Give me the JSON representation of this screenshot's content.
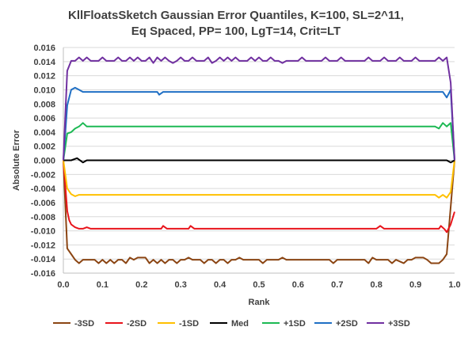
{
  "chart_data": {
    "type": "line",
    "title_lines": [
      "KllFloatsSketch Gaussian Error Quantiles, K=100, SL=2^11,",
      "Eq Spaced, PP= 100, LgT=14, Crit=LT"
    ],
    "xlabel": "Rank",
    "ylabel": "Absolute Error",
    "xlim": [
      0,
      1
    ],
    "ylim": [
      -0.016,
      0.016
    ],
    "x_ticks": [
      "0.0",
      "0.1",
      "0.2",
      "0.3",
      "0.4",
      "0.5",
      "0.6",
      "0.7",
      "0.8",
      "0.9",
      "1.0"
    ],
    "y_ticks": [
      "-0.016",
      "-0.014",
      "-0.012",
      "-0.010",
      "-0.008",
      "-0.006",
      "-0.004",
      "-0.002",
      "0.000",
      "0.002",
      "0.004",
      "0.006",
      "0.008",
      "0.010",
      "0.012",
      "0.014",
      "0.016"
    ],
    "grid": "horizontal",
    "legend": "bottom",
    "series": [
      {
        "name": "-3SD",
        "color": "#8B4513",
        "points": [
          [
            0,
            0
          ],
          [
            0.01,
            -0.0125
          ],
          [
            0.02,
            -0.0133
          ],
          [
            0.03,
            -0.0141
          ],
          [
            0.04,
            -0.0146
          ],
          [
            0.05,
            -0.0141
          ],
          [
            0.07,
            -0.0141
          ],
          [
            0.08,
            -0.0141
          ],
          [
            0.09,
            -0.0146
          ],
          [
            0.1,
            -0.0141
          ],
          [
            0.11,
            -0.0146
          ],
          [
            0.12,
            -0.0141
          ],
          [
            0.13,
            -0.0146
          ],
          [
            0.14,
            -0.0141
          ],
          [
            0.15,
            -0.0141
          ],
          [
            0.16,
            -0.0146
          ],
          [
            0.17,
            -0.0138
          ],
          [
            0.18,
            -0.0141
          ],
          [
            0.19,
            -0.0138
          ],
          [
            0.21,
            -0.0138
          ],
          [
            0.22,
            -0.0146
          ],
          [
            0.23,
            -0.0141
          ],
          [
            0.24,
            -0.0146
          ],
          [
            0.25,
            -0.0141
          ],
          [
            0.26,
            -0.0146
          ],
          [
            0.27,
            -0.0141
          ],
          [
            0.28,
            -0.0141
          ],
          [
            0.29,
            -0.0146
          ],
          [
            0.3,
            -0.0141
          ],
          [
            0.31,
            -0.0141
          ],
          [
            0.32,
            -0.0138
          ],
          [
            0.33,
            -0.0141
          ],
          [
            0.35,
            -0.0141
          ],
          [
            0.36,
            -0.0146
          ],
          [
            0.37,
            -0.0141
          ],
          [
            0.38,
            -0.0141
          ],
          [
            0.39,
            -0.0146
          ],
          [
            0.4,
            -0.0141
          ],
          [
            0.41,
            -0.0141
          ],
          [
            0.42,
            -0.0146
          ],
          [
            0.43,
            -0.0141
          ],
          [
            0.44,
            -0.0141
          ],
          [
            0.45,
            -0.0138
          ],
          [
            0.46,
            -0.0141
          ],
          [
            0.5,
            -0.0141
          ],
          [
            0.51,
            -0.0146
          ],
          [
            0.52,
            -0.0141
          ],
          [
            0.55,
            -0.0141
          ],
          [
            0.56,
            -0.0138
          ],
          [
            0.57,
            -0.0141
          ],
          [
            0.68,
            -0.0141
          ],
          [
            0.69,
            -0.0146
          ],
          [
            0.7,
            -0.0141
          ],
          [
            0.77,
            -0.0141
          ],
          [
            0.78,
            -0.0146
          ],
          [
            0.79,
            -0.0138
          ],
          [
            0.8,
            -0.0141
          ],
          [
            0.83,
            -0.0141
          ],
          [
            0.84,
            -0.0146
          ],
          [
            0.85,
            -0.0141
          ],
          [
            0.87,
            -0.0146
          ],
          [
            0.88,
            -0.0141
          ],
          [
            0.89,
            -0.0141
          ],
          [
            0.9,
            -0.0138
          ],
          [
            0.92,
            -0.0138
          ],
          [
            0.93,
            -0.0141
          ],
          [
            0.94,
            -0.0146
          ],
          [
            0.96,
            -0.0146
          ],
          [
            0.97,
            -0.0141
          ],
          [
            0.98,
            -0.0133
          ],
          [
            1.0,
            0
          ]
        ]
      },
      {
        "name": "-2SD",
        "color": "#E8141B",
        "points": [
          [
            0,
            0
          ],
          [
            0.01,
            -0.0072
          ],
          [
            0.015,
            -0.0085
          ],
          [
            0.02,
            -0.0091
          ],
          [
            0.03,
            -0.0095
          ],
          [
            0.04,
            -0.0097
          ],
          [
            0.05,
            -0.0097
          ],
          [
            0.06,
            -0.0095
          ],
          [
            0.07,
            -0.0097
          ],
          [
            0.25,
            -0.0097
          ],
          [
            0.255,
            -0.0093
          ],
          [
            0.265,
            -0.0097
          ],
          [
            0.32,
            -0.0097
          ],
          [
            0.325,
            -0.0093
          ],
          [
            0.335,
            -0.0097
          ],
          [
            0.8,
            -0.0097
          ],
          [
            0.81,
            -0.0093
          ],
          [
            0.82,
            -0.0097
          ],
          [
            0.96,
            -0.0097
          ],
          [
            0.965,
            -0.0093
          ],
          [
            0.975,
            -0.0098
          ],
          [
            0.98,
            -0.0102
          ],
          [
            0.99,
            -0.0091
          ],
          [
            1.0,
            -0.0073
          ]
        ]
      },
      {
        "name": "-1SD",
        "color": "#FFC000",
        "points": [
          [
            0,
            0
          ],
          [
            0.01,
            -0.004
          ],
          [
            0.02,
            -0.0048
          ],
          [
            0.03,
            -0.0051
          ],
          [
            0.04,
            -0.0049
          ],
          [
            0.05,
            -0.0049
          ],
          [
            0.95,
            -0.0049
          ],
          [
            0.96,
            -0.0053
          ],
          [
            0.97,
            -0.0049
          ],
          [
            0.98,
            -0.0053
          ],
          [
            0.99,
            -0.0045
          ],
          [
            1.0,
            0
          ]
        ]
      },
      {
        "name": "Med",
        "color": "#000000",
        "points": [
          [
            0,
            0
          ],
          [
            0.02,
            0
          ],
          [
            0.035,
            0.0003
          ],
          [
            0.05,
            -0.0003
          ],
          [
            0.06,
            0
          ],
          [
            0.98,
            0
          ],
          [
            0.99,
            -0.0003
          ],
          [
            1.0,
            0
          ]
        ]
      },
      {
        "name": "+1SD",
        "color": "#1DB954",
        "points": [
          [
            0,
            0
          ],
          [
            0.01,
            0.0038
          ],
          [
            0.02,
            0.004
          ],
          [
            0.03,
            0.0045
          ],
          [
            0.04,
            0.0048
          ],
          [
            0.05,
            0.0053
          ],
          [
            0.06,
            0.0048
          ],
          [
            0.95,
            0.0048
          ],
          [
            0.96,
            0.0045
          ],
          [
            0.97,
            0.0053
          ],
          [
            0.98,
            0.0048
          ],
          [
            0.99,
            0.0053
          ],
          [
            1.0,
            0
          ]
        ]
      },
      {
        "name": "+2SD",
        "color": "#1F6FC4",
        "points": [
          [
            0,
            0
          ],
          [
            0.01,
            0.0078
          ],
          [
            0.02,
            0.01
          ],
          [
            0.03,
            0.0103
          ],
          [
            0.04,
            0.01
          ],
          [
            0.05,
            0.0097
          ],
          [
            0.24,
            0.0097
          ],
          [
            0.245,
            0.0093
          ],
          [
            0.255,
            0.0097
          ],
          [
            0.97,
            0.0097
          ],
          [
            0.98,
            0.0089
          ],
          [
            0.99,
            0.01
          ],
          [
            1.0,
            0
          ]
        ]
      },
      {
        "name": "+3SD",
        "color": "#7030A0",
        "points": [
          [
            0,
            0
          ],
          [
            0.01,
            0.0127
          ],
          [
            0.02,
            0.0141
          ],
          [
            0.03,
            0.0141
          ],
          [
            0.04,
            0.0146
          ],
          [
            0.05,
            0.0141
          ],
          [
            0.06,
            0.0146
          ],
          [
            0.07,
            0.0141
          ],
          [
            0.09,
            0.0141
          ],
          [
            0.1,
            0.0146
          ],
          [
            0.11,
            0.0141
          ],
          [
            0.13,
            0.0141
          ],
          [
            0.14,
            0.0146
          ],
          [
            0.15,
            0.0141
          ],
          [
            0.16,
            0.0141
          ],
          [
            0.17,
            0.0146
          ],
          [
            0.18,
            0.0141
          ],
          [
            0.19,
            0.0146
          ],
          [
            0.2,
            0.0141
          ],
          [
            0.21,
            0.0141
          ],
          [
            0.22,
            0.0146
          ],
          [
            0.23,
            0.0138
          ],
          [
            0.24,
            0.0146
          ],
          [
            0.25,
            0.0141
          ],
          [
            0.26,
            0.0146
          ],
          [
            0.27,
            0.0141
          ],
          [
            0.28,
            0.0138
          ],
          [
            0.29,
            0.0141
          ],
          [
            0.3,
            0.0146
          ],
          [
            0.31,
            0.0141
          ],
          [
            0.32,
            0.0141
          ],
          [
            0.33,
            0.0146
          ],
          [
            0.34,
            0.0141
          ],
          [
            0.36,
            0.0141
          ],
          [
            0.37,
            0.0146
          ],
          [
            0.38,
            0.0138
          ],
          [
            0.39,
            0.0141
          ],
          [
            0.4,
            0.0146
          ],
          [
            0.41,
            0.0141
          ],
          [
            0.42,
            0.0146
          ],
          [
            0.43,
            0.0141
          ],
          [
            0.44,
            0.0146
          ],
          [
            0.45,
            0.0141
          ],
          [
            0.47,
            0.0141
          ],
          [
            0.48,
            0.0146
          ],
          [
            0.49,
            0.0141
          ],
          [
            0.5,
            0.0146
          ],
          [
            0.51,
            0.0141
          ],
          [
            0.52,
            0.0141
          ],
          [
            0.53,
            0.0146
          ],
          [
            0.54,
            0.0141
          ],
          [
            0.55,
            0.0141
          ],
          [
            0.56,
            0.0138
          ],
          [
            0.57,
            0.0141
          ],
          [
            0.6,
            0.0141
          ],
          [
            0.61,
            0.0146
          ],
          [
            0.62,
            0.0141
          ],
          [
            0.66,
            0.0141
          ],
          [
            0.67,
            0.0146
          ],
          [
            0.68,
            0.0141
          ],
          [
            0.7,
            0.0141
          ],
          [
            0.71,
            0.0146
          ],
          [
            0.72,
            0.0141
          ],
          [
            0.77,
            0.0141
          ],
          [
            0.78,
            0.0146
          ],
          [
            0.79,
            0.0141
          ],
          [
            0.81,
            0.0141
          ],
          [
            0.82,
            0.0146
          ],
          [
            0.83,
            0.0141
          ],
          [
            0.85,
            0.0141
          ],
          [
            0.86,
            0.0146
          ],
          [
            0.87,
            0.0141
          ],
          [
            0.89,
            0.0141
          ],
          [
            0.9,
            0.0146
          ],
          [
            0.91,
            0.0141
          ],
          [
            0.95,
            0.0141
          ],
          [
            0.96,
            0.0146
          ],
          [
            0.97,
            0.0141
          ],
          [
            0.98,
            0.0146
          ],
          [
            0.99,
            0.011
          ],
          [
            1.0,
            0
          ]
        ]
      }
    ]
  }
}
